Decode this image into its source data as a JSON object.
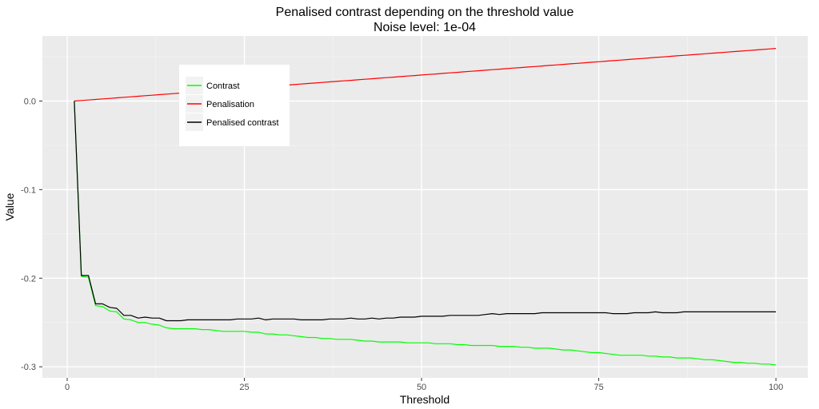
{
  "chart_data": {
    "type": "line",
    "title": "Penalised contrast depending on the threshold value",
    "subtitle": "Noise level: 1e-04",
    "xlabel": "Threshold",
    "ylabel": "Value",
    "xlim": [
      -3.5,
      104.5
    ],
    "ylim": [
      -0.3125,
      0.0735
    ],
    "x_ticks": [
      0,
      25,
      50,
      75,
      100
    ],
    "x_tick_labels": [
      "0",
      "25",
      "50",
      "75",
      "100"
    ],
    "y_ticks": [
      0.0,
      -0.1,
      -0.2,
      -0.3
    ],
    "y_tick_labels": [
      "0.0",
      "-0.1",
      "-0.2",
      "-0.3"
    ],
    "grid": true,
    "legend_position": "top-left (inside)",
    "x": [
      1,
      2,
      3,
      4,
      5,
      6,
      7,
      8,
      9,
      10,
      11,
      12,
      13,
      14,
      15,
      16,
      17,
      18,
      19,
      20,
      21,
      22,
      23,
      24,
      25,
      26,
      27,
      28,
      29,
      30,
      31,
      32,
      33,
      34,
      35,
      36,
      37,
      38,
      39,
      40,
      41,
      42,
      43,
      44,
      45,
      46,
      47,
      48,
      49,
      50,
      51,
      52,
      53,
      54,
      55,
      56,
      57,
      58,
      59,
      60,
      61,
      62,
      63,
      64,
      65,
      66,
      67,
      68,
      69,
      70,
      71,
      72,
      73,
      74,
      75,
      76,
      77,
      78,
      79,
      80,
      81,
      82,
      83,
      84,
      85,
      86,
      87,
      88,
      89,
      90,
      91,
      92,
      93,
      94,
      95,
      96,
      97,
      98,
      99,
      100
    ],
    "series": [
      {
        "name": "Contrast",
        "color": "#00ff00",
        "values": [
          0,
          -0.198,
          -0.199,
          -0.231,
          -0.232,
          -0.237,
          -0.238,
          -0.246,
          -0.247,
          -0.25,
          -0.25,
          -0.252,
          -0.253,
          -0.256,
          -0.257,
          -0.257,
          -0.257,
          -0.257,
          -0.258,
          -0.258,
          -0.259,
          -0.26,
          -0.26,
          -0.26,
          -0.26,
          -0.261,
          -0.261,
          -0.263,
          -0.263,
          -0.264,
          -0.264,
          -0.265,
          -0.266,
          -0.267,
          -0.267,
          -0.268,
          -0.268,
          -0.269,
          -0.269,
          -0.269,
          -0.27,
          -0.271,
          -0.271,
          -0.272,
          -0.272,
          -0.272,
          -0.272,
          -0.273,
          -0.273,
          -0.273,
          -0.273,
          -0.274,
          -0.274,
          -0.274,
          -0.275,
          -0.275,
          -0.276,
          -0.276,
          -0.276,
          -0.276,
          -0.277,
          -0.277,
          -0.277,
          -0.278,
          -0.278,
          -0.279,
          -0.279,
          -0.279,
          -0.28,
          -0.281,
          -0.281,
          -0.282,
          -0.283,
          -0.284,
          -0.284,
          -0.285,
          -0.286,
          -0.287,
          -0.287,
          -0.287,
          -0.287,
          -0.288,
          -0.288,
          -0.289,
          -0.289,
          -0.29,
          -0.29,
          -0.29,
          -0.291,
          -0.292,
          -0.292,
          -0.293,
          -0.294,
          -0.295,
          -0.295,
          -0.296,
          -0.296,
          -0.297,
          -0.297,
          -0.298
        ]
      },
      {
        "name": "Penalisation",
        "color": "#ff0000",
        "values": [
          0,
          0.0006,
          0.0012,
          0.0018,
          0.0024,
          0.003,
          0.0036,
          0.0042,
          0.0048,
          0.0054,
          0.006,
          0.0066,
          0.0072,
          0.0078,
          0.0084,
          0.009,
          0.0096,
          0.0102,
          0.0108,
          0.0114,
          0.012,
          0.0126,
          0.0132,
          0.0138,
          0.0144,
          0.015,
          0.0156,
          0.0162,
          0.0168,
          0.0174,
          0.018,
          0.0186,
          0.0192,
          0.0198,
          0.0204,
          0.021,
          0.0216,
          0.0222,
          0.0228,
          0.0234,
          0.024,
          0.0246,
          0.0252,
          0.0258,
          0.0264,
          0.027,
          0.0276,
          0.0282,
          0.0288,
          0.0294,
          0.03,
          0.0306,
          0.0312,
          0.0318,
          0.0324,
          0.033,
          0.0336,
          0.0342,
          0.0348,
          0.0354,
          0.036,
          0.0366,
          0.0372,
          0.0378,
          0.0384,
          0.039,
          0.0396,
          0.0402,
          0.0408,
          0.0414,
          0.042,
          0.0426,
          0.0432,
          0.0438,
          0.0444,
          0.045,
          0.0456,
          0.0462,
          0.0468,
          0.0474,
          0.048,
          0.0486,
          0.0492,
          0.0498,
          0.0504,
          0.051,
          0.0516,
          0.0522,
          0.0528,
          0.0534,
          0.054,
          0.0546,
          0.0552,
          0.0558,
          0.0564,
          0.057,
          0.0576,
          0.0582,
          0.0588,
          0.0594
        ]
      },
      {
        "name": "Penalised contrast",
        "color": "#000000",
        "values": [
          0,
          -0.197,
          -0.197,
          -0.229,
          -0.229,
          -0.233,
          -0.234,
          -0.242,
          -0.242,
          -0.245,
          -0.244,
          -0.245,
          -0.245,
          -0.248,
          -0.248,
          -0.248,
          -0.247,
          -0.247,
          -0.247,
          -0.247,
          -0.247,
          -0.247,
          -0.247,
          -0.246,
          -0.246,
          -0.246,
          -0.245,
          -0.247,
          -0.246,
          -0.246,
          -0.246,
          -0.246,
          -0.247,
          -0.247,
          -0.247,
          -0.247,
          -0.246,
          -0.246,
          -0.246,
          -0.245,
          -0.246,
          -0.246,
          -0.245,
          -0.246,
          -0.245,
          -0.245,
          -0.244,
          -0.244,
          -0.244,
          -0.243,
          -0.243,
          -0.243,
          -0.243,
          -0.242,
          -0.242,
          -0.242,
          -0.242,
          -0.242,
          -0.241,
          -0.24,
          -0.241,
          -0.24,
          -0.24,
          -0.24,
          -0.24,
          -0.24,
          -0.239,
          -0.239,
          -0.239,
          -0.239,
          -0.239,
          -0.239,
          -0.239,
          -0.239,
          -0.239,
          -0.239,
          -0.24,
          -0.24,
          -0.24,
          -0.239,
          -0.239,
          -0.239,
          -0.238,
          -0.239,
          -0.239,
          -0.239,
          -0.238,
          -0.238,
          -0.238,
          -0.238,
          -0.238,
          -0.238,
          -0.238,
          -0.238,
          -0.238,
          -0.238,
          -0.238,
          -0.238,
          -0.238,
          -0.238
        ]
      }
    ]
  }
}
